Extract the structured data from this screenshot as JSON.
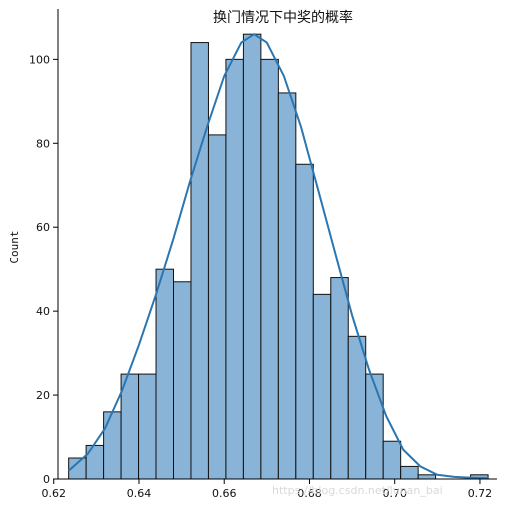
{
  "chart_data": {
    "type": "histogram",
    "title": "换门情况下中奖的概率",
    "xlabel": "",
    "ylabel": "Count",
    "xlim": [
      0.621,
      0.724
    ],
    "ylim": [
      0,
      112
    ],
    "xticks": [
      0.62,
      0.64,
      0.66,
      0.68,
      0.7,
      0.72
    ],
    "xtick_labels": [
      "0.62",
      "0.64",
      "0.66",
      "0.68",
      "0.70",
      "0.72"
    ],
    "yticks": [
      0,
      20,
      40,
      60,
      80,
      100
    ],
    "ytick_labels": [
      "0",
      "20",
      "40",
      "60",
      "80",
      "100"
    ],
    "bins": [
      {
        "x0": 0.6235,
        "x1": 0.6276,
        "count": 5
      },
      {
        "x0": 0.6276,
        "x1": 0.6317,
        "count": 8
      },
      {
        "x0": 0.6317,
        "x1": 0.6358,
        "count": 16
      },
      {
        "x0": 0.6358,
        "x1": 0.6399,
        "count": 25
      },
      {
        "x0": 0.6399,
        "x1": 0.644,
        "count": 25
      },
      {
        "x0": 0.644,
        "x1": 0.6481,
        "count": 50
      },
      {
        "x0": 0.6481,
        "x1": 0.6522,
        "count": 47
      },
      {
        "x0": 0.6522,
        "x1": 0.6563,
        "count": 104
      },
      {
        "x0": 0.6563,
        "x1": 0.6604,
        "count": 82
      },
      {
        "x0": 0.6604,
        "x1": 0.6645,
        "count": 100
      },
      {
        "x0": 0.6645,
        "x1": 0.6686,
        "count": 106
      },
      {
        "x0": 0.6686,
        "x1": 0.6727,
        "count": 100
      },
      {
        "x0": 0.6727,
        "x1": 0.6768,
        "count": 92
      },
      {
        "x0": 0.6768,
        "x1": 0.6809,
        "count": 75
      },
      {
        "x0": 0.6809,
        "x1": 0.685,
        "count": 44
      },
      {
        "x0": 0.685,
        "x1": 0.6891,
        "count": 48
      },
      {
        "x0": 0.6891,
        "x1": 0.6932,
        "count": 34
      },
      {
        "x0": 0.6932,
        "x1": 0.6973,
        "count": 25
      },
      {
        "x0": 0.6973,
        "x1": 0.7014,
        "count": 9
      },
      {
        "x0": 0.7014,
        "x1": 0.7055,
        "count": 3
      },
      {
        "x0": 0.7055,
        "x1": 0.7096,
        "count": 1
      },
      {
        "x0": 0.7096,
        "x1": 0.7137,
        "count": 0
      },
      {
        "x0": 0.7137,
        "x1": 0.7178,
        "count": 0
      },
      {
        "x0": 0.7178,
        "x1": 0.7219,
        "count": 1
      }
    ],
    "kde": {
      "x": [
        0.6235,
        0.628,
        0.632,
        0.636,
        0.64,
        0.644,
        0.648,
        0.652,
        0.656,
        0.66,
        0.664,
        0.667,
        0.67,
        0.674,
        0.678,
        0.682,
        0.686,
        0.69,
        0.694,
        0.698,
        0.702,
        0.706,
        0.71,
        0.714,
        0.718,
        0.7219
      ],
      "y": [
        2,
        6,
        12,
        21,
        32,
        44,
        57,
        71,
        84,
        96,
        104,
        106,
        104,
        96,
        84,
        69,
        54,
        39,
        26,
        15,
        7,
        3,
        1,
        0.5,
        0.3,
        0.2
      ]
    },
    "bar_color": "#8ab4d7",
    "line_color": "#2a76b2",
    "grid": false
  },
  "watermark": "https://blog.csdn.net/lunan_bai"
}
